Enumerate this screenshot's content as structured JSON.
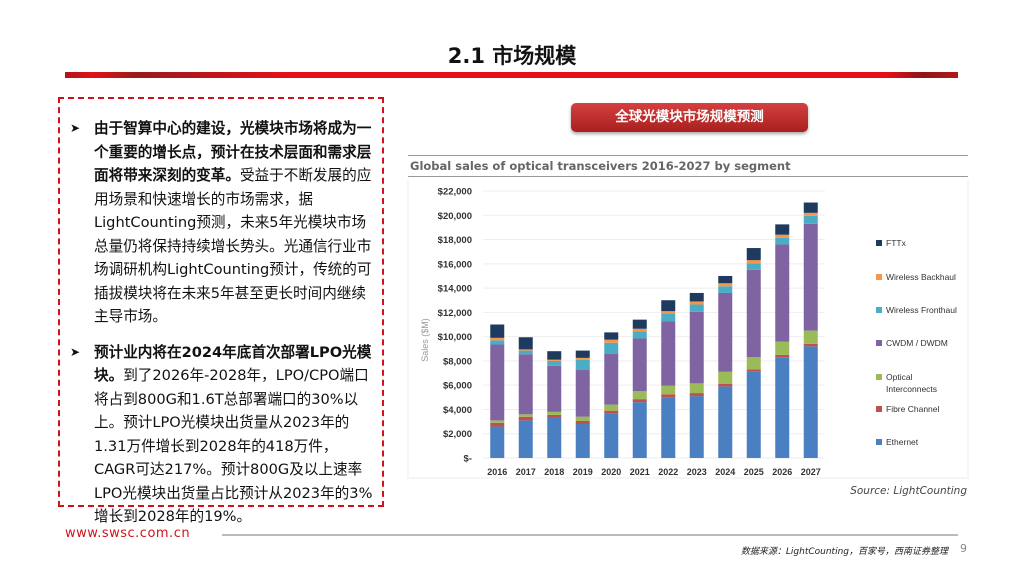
{
  "header": {
    "title": "2.1 市场规模"
  },
  "left": {
    "paragraphs": [
      {
        "bold": "由于智算中心的建设，光模块市场将成为一个重要的增长点，预计在技术层面和需求层面将带来深刻的变革。",
        "text": "受益于不断发展的应用场景和快速增长的市场需求，据LightCounting预测，未来5年光模块市场总量仍将保持持续增长势头。光通信行业市场调研机构LightCounting预计，传统的可插拔模块将在未来5年甚至更长时间内继续主导市场。"
      },
      {
        "bold": "预计业内将在2024年底首次部署LPO光模块。",
        "text": "到了2026年-2028年，LPO/CPO端口将占到800G和1.6T总部署端口的30%以上。预计LPO光模块出货量从2023年的1.31万件增长到2028年的418万件，CAGR可达217%。预计800G及以上速率LPO光模块出货量占比预计从2023年的3%增长到2028年的19%。"
      }
    ],
    "bullet_icon": "arrow-right-icon"
  },
  "banner": "全球光模块市场规模预测",
  "chart_data": {
    "type": "bar",
    "stacked": true,
    "title": "Global sales of optical transceivers 2016-2027 by segment",
    "ylabel": "Sales ($M)",
    "xlabel": "",
    "ylim": [
      0,
      22000
    ],
    "yticks": [
      "$-",
      "$2,000",
      "$4,000",
      "$6,000",
      "$8,000",
      "$10,000",
      "$12,000",
      "$14,000",
      "$16,000",
      "$18,000",
      "$20,000",
      "$22,000"
    ],
    "grid": true,
    "legend": "right",
    "categories": [
      "2016",
      "2017",
      "2018",
      "2019",
      "2020",
      "2021",
      "2022",
      "2023",
      "2024",
      "2025",
      "2026",
      "2027"
    ],
    "series": [
      {
        "name": "Ethernet",
        "color": "#4a7fc1",
        "values": [
          2600,
          3100,
          3300,
          2800,
          3700,
          4600,
          5000,
          5100,
          5900,
          7100,
          8300,
          9200
        ]
      },
      {
        "name": "Fibre Channel",
        "color": "#c0504d",
        "values": [
          300,
          300,
          250,
          250,
          200,
          250,
          250,
          250,
          200,
          200,
          200,
          200
        ]
      },
      {
        "name": "Optical Interconnects",
        "color": "#9bbb59",
        "values": [
          200,
          200,
          250,
          350,
          500,
          650,
          700,
          800,
          1000,
          1000,
          1100,
          1100
        ]
      },
      {
        "name": "CWDM / DWDM",
        "color": "#8064a2",
        "values": [
          6250,
          4950,
          3800,
          3850,
          4200,
          4350,
          5300,
          5900,
          6500,
          7200,
          8000,
          8800
        ]
      },
      {
        "name": "Wireless Fronthaul",
        "color": "#4bacc6",
        "values": [
          350,
          300,
          400,
          850,
          900,
          600,
          650,
          600,
          550,
          550,
          550,
          650
        ]
      },
      {
        "name": "Wireless Backhaul",
        "color": "#f79646",
        "values": [
          200,
          100,
          100,
          150,
          250,
          200,
          200,
          250,
          250,
          250,
          250,
          250
        ]
      },
      {
        "name": "FTTx",
        "color": "#1f3a5f",
        "values": [
          1100,
          1000,
          700,
          600,
          600,
          750,
          900,
          700,
          600,
          1000,
          850,
          850
        ]
      }
    ],
    "source": "Source: LightCounting"
  },
  "footer": {
    "url": "www.swsc.com.cn",
    "source": "数据来源：LightCounting，百家号，西南证券整理",
    "page": "9"
  }
}
